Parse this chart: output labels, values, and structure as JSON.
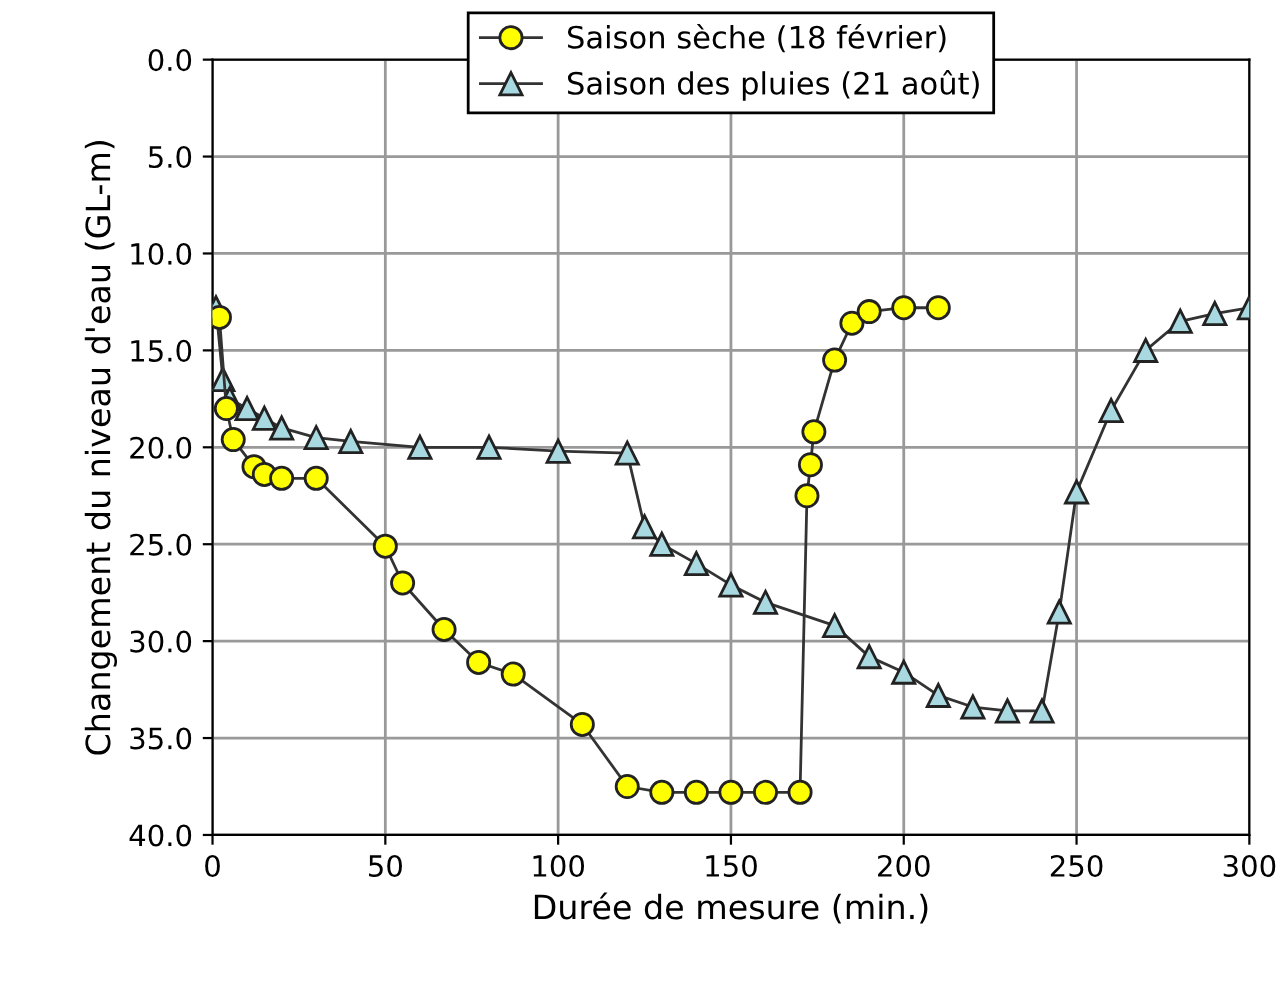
{
  "chart_data": {
    "type": "line",
    "xlabel": "Durée de mesure (min.)",
    "ylabel": "Changement du niveau d'eau (GL-m)",
    "xlim": [
      0,
      300
    ],
    "xticks": [
      0,
      50,
      100,
      150,
      200,
      250,
      300
    ],
    "ylim": [
      40,
      0
    ],
    "yticks": [
      {
        "value": 0,
        "label": "0.0"
      },
      {
        "value": 5,
        "label": "5.0"
      },
      {
        "value": 10,
        "label": "10.0"
      },
      {
        "value": 15,
        "label": "15.0"
      },
      {
        "value": 20,
        "label": "20.0"
      },
      {
        "value": 25,
        "label": "25.0"
      },
      {
        "value": 30,
        "label": "30.0"
      },
      {
        "value": 35,
        "label": "35.0"
      },
      {
        "value": 40,
        "label": "40.0"
      }
    ],
    "grid": true,
    "legend": "top",
    "line_style": "solid",
    "series": [
      {
        "name": "Saison sèche (18 février)",
        "color": "#ffff00",
        "marker": "circle",
        "x": [
          2,
          4,
          6,
          12,
          15,
          20,
          30,
          50,
          55,
          67,
          77,
          87,
          107,
          120,
          130,
          140,
          150,
          160,
          170,
          172,
          173,
          174,
          180,
          185,
          190,
          200,
          210
        ],
        "values": [
          13.3,
          18,
          19.6,
          21,
          21.4,
          21.6,
          21.6,
          25.1,
          27,
          29.4,
          31.1,
          31.7,
          34.3,
          37.5,
          37.8,
          37.8,
          37.8,
          37.8,
          37.8,
          22.5,
          20.9,
          19.2,
          15.5,
          13.6,
          13,
          12.8,
          12.8
        ]
      },
      {
        "name": "Saison des pluies (21 août)",
        "color": "#a8d8e0",
        "marker": "triangle",
        "x": [
          1,
          3,
          5,
          10,
          15,
          20,
          30,
          40,
          60,
          80,
          100,
          120,
          125,
          130,
          140,
          150,
          160,
          180,
          190,
          200,
          210,
          220,
          230,
          240,
          245,
          250,
          260,
          270,
          280,
          290,
          300
        ],
        "values": [
          12.8,
          16.5,
          17.5,
          18,
          18.5,
          19,
          19.5,
          19.7,
          20,
          20,
          20.2,
          20.3,
          24.1,
          25,
          26,
          27.1,
          28,
          29.2,
          30.8,
          31.6,
          32.8,
          33.4,
          33.6,
          33.6,
          28.5,
          22.3,
          18.1,
          15,
          13.5,
          13.1,
          12.8
        ]
      }
    ]
  }
}
